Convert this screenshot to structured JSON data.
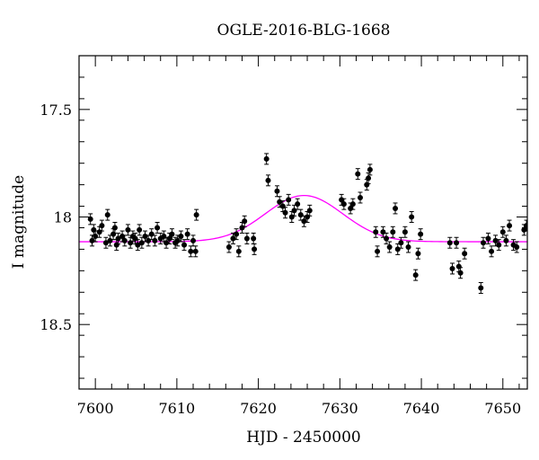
{
  "chart_data": {
    "type": "scatter",
    "title": "OGLE-2016-BLG-1668",
    "xlabel": "HJD - 2450000",
    "ylabel": "I magnitude",
    "xlim": [
      7598,
      7653
    ],
    "ylim": [
      18.8,
      17.25
    ],
    "y_inverted": true,
    "grid": false,
    "x_ticks": [
      7600,
      7610,
      7620,
      7630,
      7640,
      7650
    ],
    "y_ticks": [
      17.5,
      18,
      18.5
    ],
    "x_tick_labels": [
      "7600",
      "7610",
      "7620",
      "7630",
      "7640",
      "7650"
    ],
    "y_tick_labels": [
      "17.5",
      "18",
      "18.5"
    ],
    "colors": {
      "points": "#000000",
      "model": "#ff00ff"
    },
    "series": [
      {
        "kind": "points_with_errorbars",
        "error": 0.025,
        "x": [
          7599.4,
          7599.6,
          7599.8,
          7600.0,
          7600.5,
          7600.8,
          7601.3,
          7601.5,
          7601.8,
          7602.2,
          7602.4,
          7602.6,
          7602.8,
          7603.3,
          7603.6,
          7604.0,
          7604.3,
          7604.6,
          7604.9,
          7605.2,
          7605.4,
          7605.7,
          7606.1,
          7606.5,
          7606.9,
          7607.3,
          7607.6,
          7608.0,
          7608.4,
          7608.7,
          7609.1,
          7609.4,
          7609.8,
          7610.1,
          7610.5,
          7610.9,
          7611.3,
          7611.7,
          7612.0,
          7612.3,
          7612.4,
          7616.4,
          7616.9,
          7617.3,
          7617.6,
          7618.0,
          7618.3,
          7618.6,
          7619.4,
          7619.5,
          7621.0,
          7621.2,
          7622.3,
          7622.6,
          7623.0,
          7623.3,
          7623.7,
          7624.1,
          7624.4,
          7624.8,
          7625.2,
          7625.6,
          7626.0,
          7626.3,
          7630.2,
          7630.5,
          7631.3,
          7631.6,
          7632.2,
          7632.5,
          7633.3,
          7633.5,
          7633.7,
          7634.4,
          7634.6,
          7635.3,
          7635.7,
          7636.1,
          7636.5,
          7636.8,
          7637.1,
          7637.5,
          7638.0,
          7638.4,
          7638.8,
          7639.3,
          7639.6,
          7639.9,
          7643.5,
          7643.8,
          7644.3,
          7644.6,
          7644.8,
          7645.3,
          7647.3,
          7647.6,
          7648.2,
          7648.6,
          7649.1,
          7649.5,
          7650.0,
          7650.4,
          7650.8,
          7651.3,
          7651.7,
          7652.6,
          7652.9
        ],
        "y": [
          18.01,
          18.11,
          18.06,
          18.09,
          18.07,
          18.04,
          18.12,
          17.99,
          18.11,
          18.08,
          18.05,
          18.13,
          18.1,
          18.09,
          18.11,
          18.06,
          18.12,
          18.09,
          18.1,
          18.13,
          18.06,
          18.12,
          18.09,
          18.11,
          18.08,
          18.11,
          18.05,
          18.1,
          18.09,
          18.12,
          18.1,
          18.08,
          18.12,
          18.11,
          18.09,
          18.13,
          18.08,
          18.16,
          18.11,
          18.16,
          17.99,
          18.14,
          18.1,
          18.08,
          18.16,
          18.05,
          18.02,
          18.1,
          18.1,
          18.15,
          17.73,
          17.83,
          17.88,
          17.93,
          17.95,
          17.98,
          17.92,
          18.0,
          17.97,
          17.94,
          17.99,
          18.02,
          18.0,
          17.97,
          17.92,
          17.94,
          17.96,
          17.94,
          17.8,
          17.91,
          17.85,
          17.82,
          17.78,
          18.07,
          18.16,
          18.07,
          18.1,
          18.14,
          18.07,
          17.96,
          18.15,
          18.12,
          18.07,
          18.14,
          18.0,
          18.27,
          18.17,
          18.08,
          18.12,
          18.24,
          18.12,
          18.23,
          18.26,
          18.17,
          18.33,
          18.12,
          18.1,
          18.16,
          18.11,
          18.13,
          18.07,
          18.11,
          18.04,
          18.13,
          18.14,
          18.06,
          18.04
        ]
      },
      {
        "kind": "model_curve",
        "baseline": 18.115,
        "peak_magnitude": 17.9,
        "t0": 7625.6,
        "width": 6.7
      }
    ]
  }
}
